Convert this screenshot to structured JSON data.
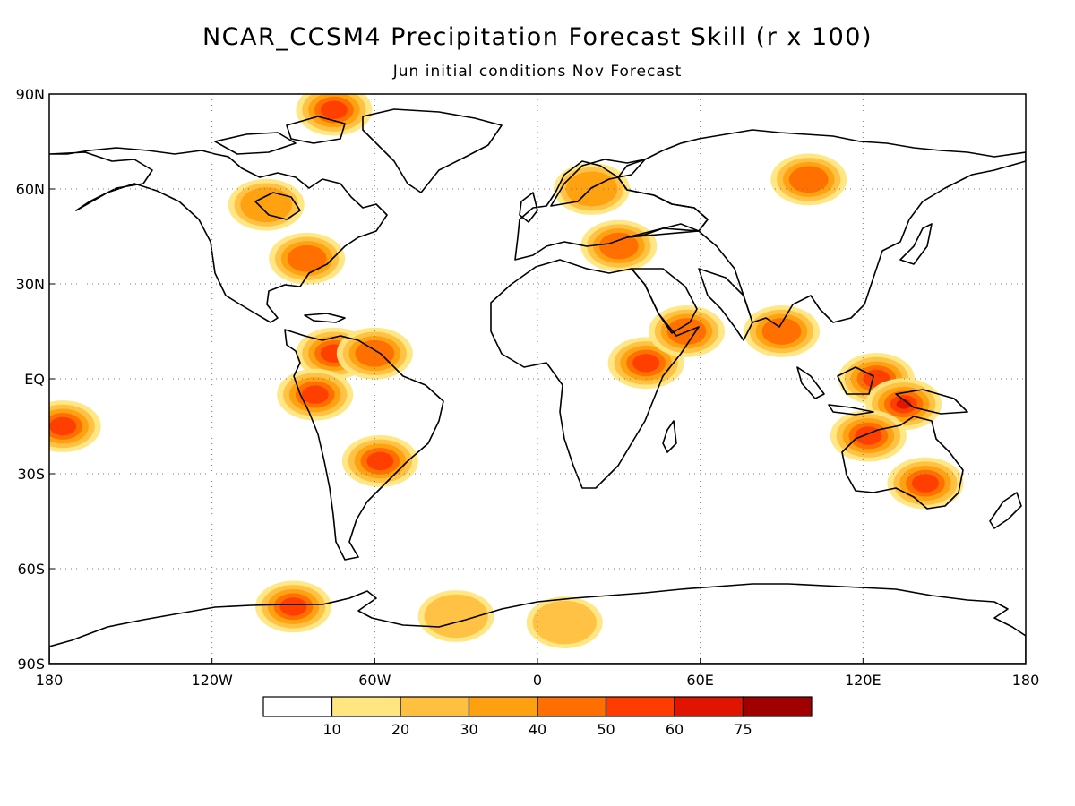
{
  "title": "NCAR_CCSM4 Precipitation Forecast Skill (r x 100)",
  "subtitle": "Jun initial conditions   Nov Forecast",
  "map": {
    "lat_ticks": [
      "90N",
      "60N",
      "30N",
      "EQ",
      "30S",
      "60S",
      "90S"
    ],
    "lon_ticks": [
      "180",
      "120W",
      "60W",
      "0",
      "60E",
      "120E",
      "180"
    ],
    "gridlines": "dotted",
    "coastline_color": "#000000"
  },
  "colorbar": {
    "colors": [
      "#ffffff",
      "#ffe680",
      "#ffc040",
      "#ffa010",
      "#ff6e00",
      "#ff3c00",
      "#e01400",
      "#a00000"
    ],
    "labels": [
      "10",
      "20",
      "30",
      "40",
      "50",
      "60",
      "75"
    ]
  },
  "chart_data": {
    "type": "heatmap",
    "variable": "Precipitation Forecast Skill (r x 100)",
    "xlim": [
      -180,
      180
    ],
    "ylim": [
      -90,
      90
    ],
    "levels": [
      10,
      20,
      30,
      40,
      50,
      60,
      75
    ],
    "regions": [
      {
        "lon": -75,
        "lat": 8,
        "value": 55
      },
      {
        "lon": -60,
        "lat": 8,
        "value": 45
      },
      {
        "lon": -82,
        "lat": -5,
        "value": 50
      },
      {
        "lon": -58,
        "lat": -26,
        "value": 50
      },
      {
        "lon": -100,
        "lat": 55,
        "value": 30
      },
      {
        "lon": -85,
        "lat": 38,
        "value": 40
      },
      {
        "lon": -75,
        "lat": 85,
        "value": 55
      },
      {
        "lon": -175,
        "lat": -15,
        "value": 50
      },
      {
        "lon": 40,
        "lat": 5,
        "value": 50
      },
      {
        "lon": 55,
        "lat": 15,
        "value": 45
      },
      {
        "lon": 30,
        "lat": 42,
        "value": 45
      },
      {
        "lon": 20,
        "lat": 60,
        "value": 35
      },
      {
        "lon": 100,
        "lat": 63,
        "value": 40
      },
      {
        "lon": 125,
        "lat": 0,
        "value": 55
      },
      {
        "lon": 135,
        "lat": -8,
        "value": 60
      },
      {
        "lon": 122,
        "lat": -18,
        "value": 55
      },
      {
        "lon": 143,
        "lat": -33,
        "value": 50
      },
      {
        "lon": 90,
        "lat": 15,
        "value": 40
      },
      {
        "lon": -30,
        "lat": -75,
        "value": 20
      },
      {
        "lon": 10,
        "lat": -77,
        "value": 25
      },
      {
        "lon": -90,
        "lat": -72,
        "value": 55
      }
    ]
  }
}
